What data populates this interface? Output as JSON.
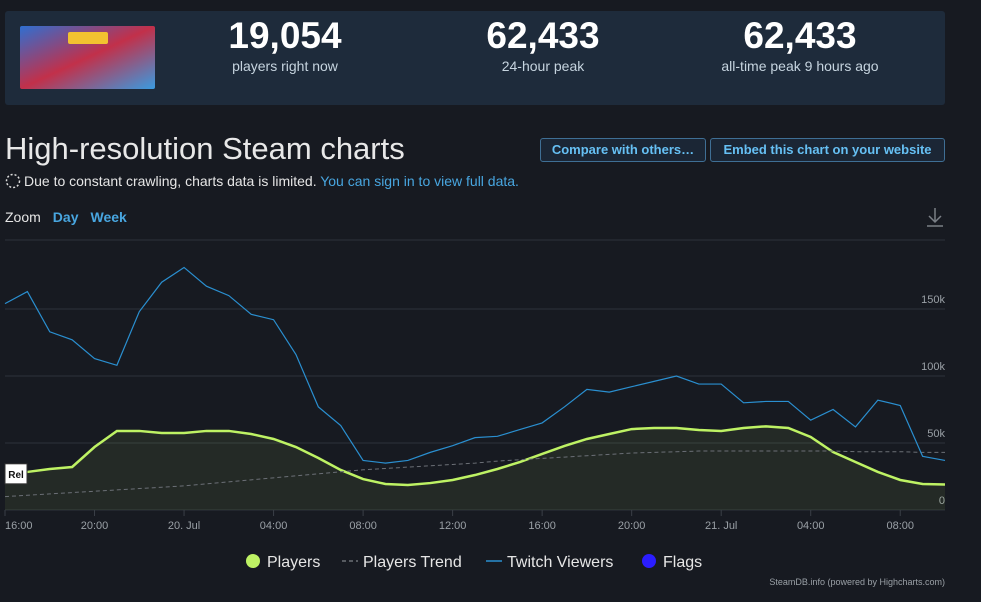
{
  "header": {
    "stats": [
      {
        "value": "19,054",
        "label": "players right now"
      },
      {
        "value": "62,433",
        "label": "24-hour peak"
      },
      {
        "value": "62,433",
        "label": "all-time peak 9 hours ago"
      }
    ]
  },
  "title": "High-resolution Steam charts",
  "buttons": [
    "Compare with others…",
    "Embed this chart on your website"
  ],
  "notice": {
    "text": "Due to constant crawling, charts data is limited.",
    "link": "You can sign in to view full data."
  },
  "zoom": {
    "label": "Zoom",
    "options": [
      "Day",
      "Week"
    ]
  },
  "chart_data": {
    "type": "line",
    "x": [
      0,
      1,
      2,
      3,
      4,
      5,
      6,
      7,
      8,
      9,
      10,
      11,
      12,
      13,
      14,
      15,
      16,
      17,
      18,
      19,
      20,
      21,
      22,
      23,
      24,
      25,
      26,
      27,
      28,
      29,
      30,
      31,
      32,
      33,
      34,
      35,
      36,
      37,
      38,
      39,
      40,
      41,
      42
    ],
    "xlim": [
      0,
      42
    ],
    "xticks": [
      {
        "value": 0,
        "label": "16:00"
      },
      {
        "value": 4,
        "label": "20:00"
      },
      {
        "value": 8,
        "label": "20. Jul"
      },
      {
        "value": 12,
        "label": "04:00"
      },
      {
        "value": 16,
        "label": "08:00"
      },
      {
        "value": 20,
        "label": "12:00"
      },
      {
        "value": 24,
        "label": "16:00"
      },
      {
        "value": 28,
        "label": "20:00"
      },
      {
        "value": 32,
        "label": "21. Jul"
      },
      {
        "value": 36,
        "label": "04:00"
      },
      {
        "value": 40,
        "label": "08:00"
      }
    ],
    "ylim": [
      0,
      200000
    ],
    "yticks": [
      0,
      {
        "value": 50000,
        "label": "50k"
      },
      {
        "value": 100000,
        "label": "100k"
      },
      {
        "value": 150000,
        "label": "150k"
      }
    ],
    "grid": true,
    "annotation": "Rel",
    "credit": "SteamDB.info (powered by Highcharts.com)",
    "series": [
      {
        "name": "Players",
        "color": "#bef264",
        "marker": "circle",
        "fill_area": true,
        "values": [
          27000,
          28400,
          30600,
          32100,
          47000,
          59000,
          59000,
          57500,
          57500,
          59000,
          59000,
          56700,
          53000,
          47000,
          38800,
          29900,
          23100,
          19400,
          18700,
          20100,
          22400,
          26100,
          30600,
          35800,
          41800,
          47800,
          53000,
          56700,
          60400,
          61200,
          61200,
          59700,
          59000,
          61200,
          62433,
          61200,
          54500,
          43300,
          35800,
          28400,
          22400,
          19400,
          19054
        ]
      },
      {
        "name": "Players Trend",
        "color": "#6b6f76",
        "dashed": true,
        "values": [
          10000,
          11000,
          12000,
          13000,
          14000,
          15000,
          16000,
          17000,
          18000,
          19500,
          21000,
          22500,
          24000,
          25500,
          27000,
          28500,
          30000,
          31000,
          32000,
          33000,
          34000,
          35000,
          36500,
          37500,
          38500,
          39500,
          40500,
          41500,
          42500,
          43000,
          43500,
          44000,
          44000,
          44000,
          44000,
          44000,
          44000,
          44000,
          43500,
          43500,
          43500,
          43000,
          43000
        ]
      },
      {
        "name": "Twitch Viewers",
        "color": "#2a8fd0",
        "values": [
          154000,
          163000,
          133000,
          127000,
          113000,
          108000,
          148000,
          170000,
          181000,
          167000,
          160000,
          146000,
          142000,
          116000,
          77000,
          63000,
          37000,
          35000,
          37000,
          43000,
          48000,
          54000,
          55000,
          60000,
          65000,
          77000,
          90000,
          88000,
          92000,
          96000,
          100000,
          94000,
          94000,
          80000,
          81000,
          81000,
          67000,
          75000,
          62000,
          82000,
          78000,
          40000,
          37000
        ]
      },
      {
        "name": "Flags",
        "color": "#2b1dff",
        "marker": "circle",
        "values": [
          null,
          null,
          null,
          null,
          null,
          null,
          null,
          null,
          null,
          null,
          null,
          null,
          null,
          null,
          null,
          null,
          null,
          null,
          null,
          null,
          null,
          null,
          null,
          null,
          null,
          null,
          null,
          null,
          null,
          null,
          null,
          null,
          null,
          null,
          null,
          null,
          null,
          null,
          null,
          null,
          null,
          null,
          null
        ]
      }
    ]
  }
}
